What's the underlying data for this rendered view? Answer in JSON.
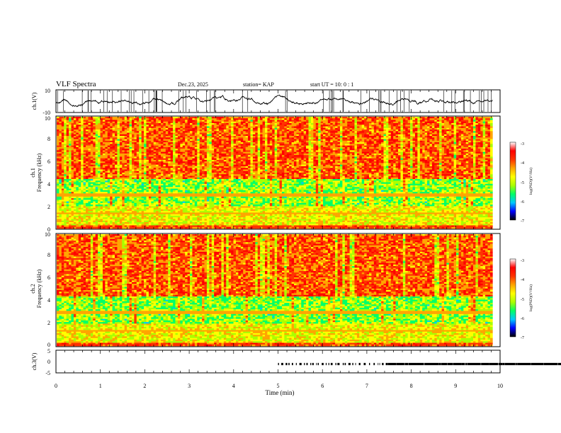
{
  "header": {
    "title": "VLF Spectra",
    "date": "Dec.23, 2025",
    "station": "station= KAP",
    "start": "start  UT =   10: 0  : 1"
  },
  "colors": {
    "colormap": [
      "#000000",
      "#0000ff",
      "#00c8ff",
      "#00ff66",
      "#aaff00",
      "#ffff00",
      "#ffa500",
      "#ff3300",
      "#ff0000",
      "#ffffff"
    ],
    "trace": "#000000"
  },
  "chart_data": [
    {
      "type": "line",
      "ylabel": "ch.1(V)",
      "ylim": [
        -10,
        10
      ],
      "yticks": [
        "10",
        "-10"
      ],
      "xlim": [
        0,
        10
      ]
    },
    {
      "type": "heatmap",
      "ylabel_top": "ch.1",
      "ylabel": "Frequency (kHz)",
      "ylim": [
        0,
        10
      ],
      "yticks": [
        "0",
        "2",
        "4",
        "6",
        "8",
        "10"
      ],
      "xlim": [
        0,
        9.83
      ],
      "colorbar": {
        "label": "log(PSD)(V²/Hz)",
        "range": [
          -7,
          -3
        ],
        "ticks": [
          "-3",
          "-4",
          "-5",
          "-6",
          "-7"
        ]
      }
    },
    {
      "type": "heatmap",
      "ylabel_top": "ch.2",
      "ylabel": "Frequency (kHz)",
      "ylim": [
        0,
        10
      ],
      "yticks": [
        "0",
        "2",
        "4",
        "6",
        "8",
        "10"
      ],
      "xlim": [
        0,
        9.83
      ],
      "colorbar": {
        "label": "log(PSD)(V²/Hz)",
        "range": [
          -7,
          -3
        ],
        "ticks": [
          "-3",
          "-4",
          "-5",
          "-6",
          "-7"
        ]
      }
    },
    {
      "type": "line",
      "ylabel": "ch.3(V)",
      "ylim": [
        -5,
        5
      ],
      "yticks": [
        "5",
        "0",
        "-5"
      ],
      "xlim": [
        0,
        10
      ],
      "xlabel": "Time (min)",
      "xticks": [
        "0",
        "1",
        "2",
        "3",
        "4",
        "5",
        "6",
        "7",
        "8",
        "9",
        "10"
      ]
    }
  ]
}
